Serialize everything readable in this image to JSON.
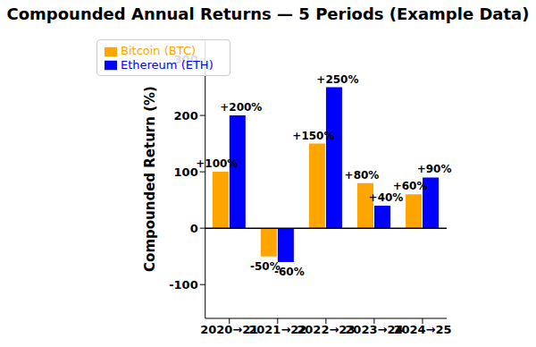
{
  "chart_data": {
    "type": "bar",
    "title": "Compounded Annual Returns — 5 Periods (Example Data)",
    "y_label": "Compounded Return (%)",
    "categories": [
      "2020→21",
      "2021→22",
      "2022→23",
      "2023→24",
      "2024→25"
    ],
    "series": [
      {
        "name": "Bitcoin (BTC)",
        "color": "#FFA500",
        "values": [
          100,
          -50,
          150,
          80,
          60
        ],
        "value_labels": [
          "+100%",
          "-50%",
          "+150%",
          "+80%",
          "+60%"
        ]
      },
      {
        "name": "Ethereum (ETH)",
        "color": "#0000FF",
        "values": [
          200,
          -60,
          250,
          40,
          90
        ],
        "value_labels": [
          "+200%",
          "-60%",
          "+250%",
          "+40%",
          "+90%"
        ]
      }
    ],
    "ylim": [
      -160,
      335
    ],
    "yticks": [
      -100,
      0,
      100,
      200,
      300
    ],
    "grid": false,
    "legend": "upper left",
    "data_labels": true
  }
}
